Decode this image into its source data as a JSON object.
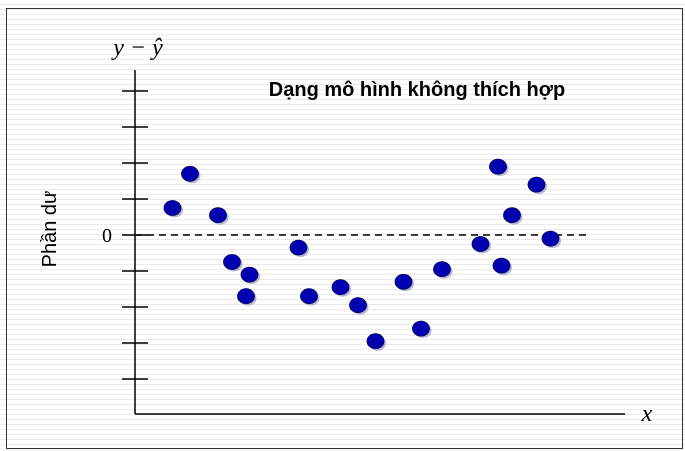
{
  "chart_data": {
    "type": "scatter",
    "title": "Dạng mô hình không thích hợp",
    "ylabel": "Phần dư",
    "ylabel_math": "y − ŷ",
    "xlabel_math": "x",
    "zero_tick_label": "0",
    "ylim": [
      -5,
      4.5
    ],
    "xlim": [
      0,
      21
    ],
    "grid": false,
    "zero_line": "dashed",
    "point_color": "#0000b0",
    "series": [
      {
        "x": [
          1.5,
          2.0,
          2.8,
          3.2,
          3.7,
          3.6,
          5.1,
          5.4,
          6.3,
          6.8,
          7.3,
          8.1,
          8.6,
          9.2,
          10.3,
          10.8,
          10.9,
          11.2,
          11.9,
          12.3
        ],
        "y": [
          0.75,
          1.7,
          0.55,
          -0.75,
          -1.1,
          -1.7,
          -0.35,
          -1.7,
          -1.45,
          -1.95,
          -2.95,
          -1.3,
          -2.6,
          -0.95,
          -0.25,
          1.9,
          -0.85,
          0.55,
          1.4,
          -0.1
        ]
      }
    ]
  }
}
